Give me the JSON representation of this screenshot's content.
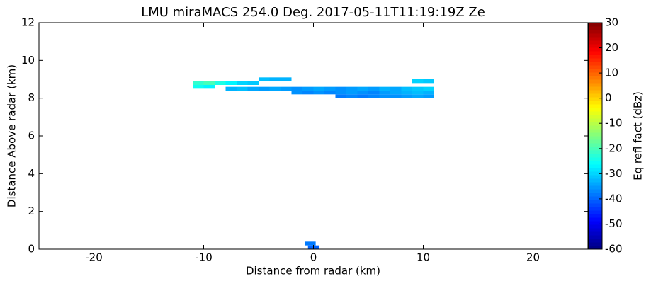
{
  "chart_data": {
    "type": "rhi",
    "title": "LMU miraMACS 254.0 Deg. 2017-05-11T11:19:19Z  Ze",
    "x_label": "Distance from radar (km)",
    "y_label": "Distance Above radar  (km)",
    "xlim": [
      -25,
      25
    ],
    "xticks": [
      -20,
      -10,
      0,
      10,
      20
    ],
    "ylim": [
      0,
      12
    ],
    "yticks": [
      0,
      2,
      4,
      6,
      8,
      10,
      12
    ],
    "colorbar_label": "Eq refl fact (dBz)",
    "clim": [
      -60,
      30
    ],
    "cticks": [
      -60,
      -50,
      -40,
      -30,
      -20,
      -10,
      0,
      10,
      20,
      30
    ],
    "colormap": "jet",
    "cells": {
      "x": [
        -10.5,
        -9.5,
        -8.5,
        -7.5,
        -6.5,
        -5.5,
        -10.5,
        -9.5,
        -4.5,
        -3.5,
        -2.5,
        -7.5,
        -6.5,
        -5.5,
        -4.5,
        -3.5,
        -2.5,
        -1.5,
        -0.5,
        0.5,
        1.5,
        2.5,
        3.5,
        4.5,
        5.5,
        6.5,
        7.5,
        8.5,
        9.5,
        10.5,
        -1.5,
        -0.5,
        0.5,
        1.5,
        2.5,
        3.5,
        4.5,
        5.5,
        6.5,
        7.5,
        8.5,
        9.5,
        10.5,
        2.5,
        3.5,
        4.5,
        5.5,
        6.5,
        7.5,
        8.5,
        9.5,
        10.5,
        9.5,
        10.5,
        0,
        -0.3
      ],
      "y": [
        8.8,
        8.8,
        8.8,
        8.8,
        8.8,
        8.8,
        8.6,
        8.6,
        9.0,
        9.0,
        9.0,
        8.5,
        8.5,
        8.5,
        8.5,
        8.5,
        8.5,
        8.5,
        8.5,
        8.5,
        8.5,
        8.5,
        8.5,
        8.5,
        8.5,
        8.5,
        8.5,
        8.5,
        8.5,
        8.5,
        8.3,
        8.3,
        8.3,
        8.3,
        8.3,
        8.3,
        8.3,
        8.3,
        8.3,
        8.3,
        8.3,
        8.3,
        8.3,
        8.1,
        8.1,
        8.1,
        8.1,
        8.1,
        8.1,
        8.1,
        8.1,
        8.1,
        8.9,
        8.9,
        0.1,
        0.3
      ],
      "values": [
        -22,
        -20,
        -24,
        -27,
        -30,
        -31,
        -25,
        -27,
        -32,
        -33,
        -33,
        -33,
        -32,
        -34,
        -35,
        -34,
        -35,
        -36,
        -35,
        -34,
        -35,
        -36,
        -35,
        -34,
        -35,
        -33,
        -34,
        -32,
        -31,
        -30,
        -36,
        -37,
        -36,
        -37,
        -36,
        -35,
        -36,
        -37,
        -35,
        -34,
        -33,
        -32,
        -33,
        -38,
        -37,
        -38,
        -37,
        -36,
        -36,
        -35,
        -34,
        -35,
        -30,
        -31,
        -40,
        -38
      ]
    }
  }
}
